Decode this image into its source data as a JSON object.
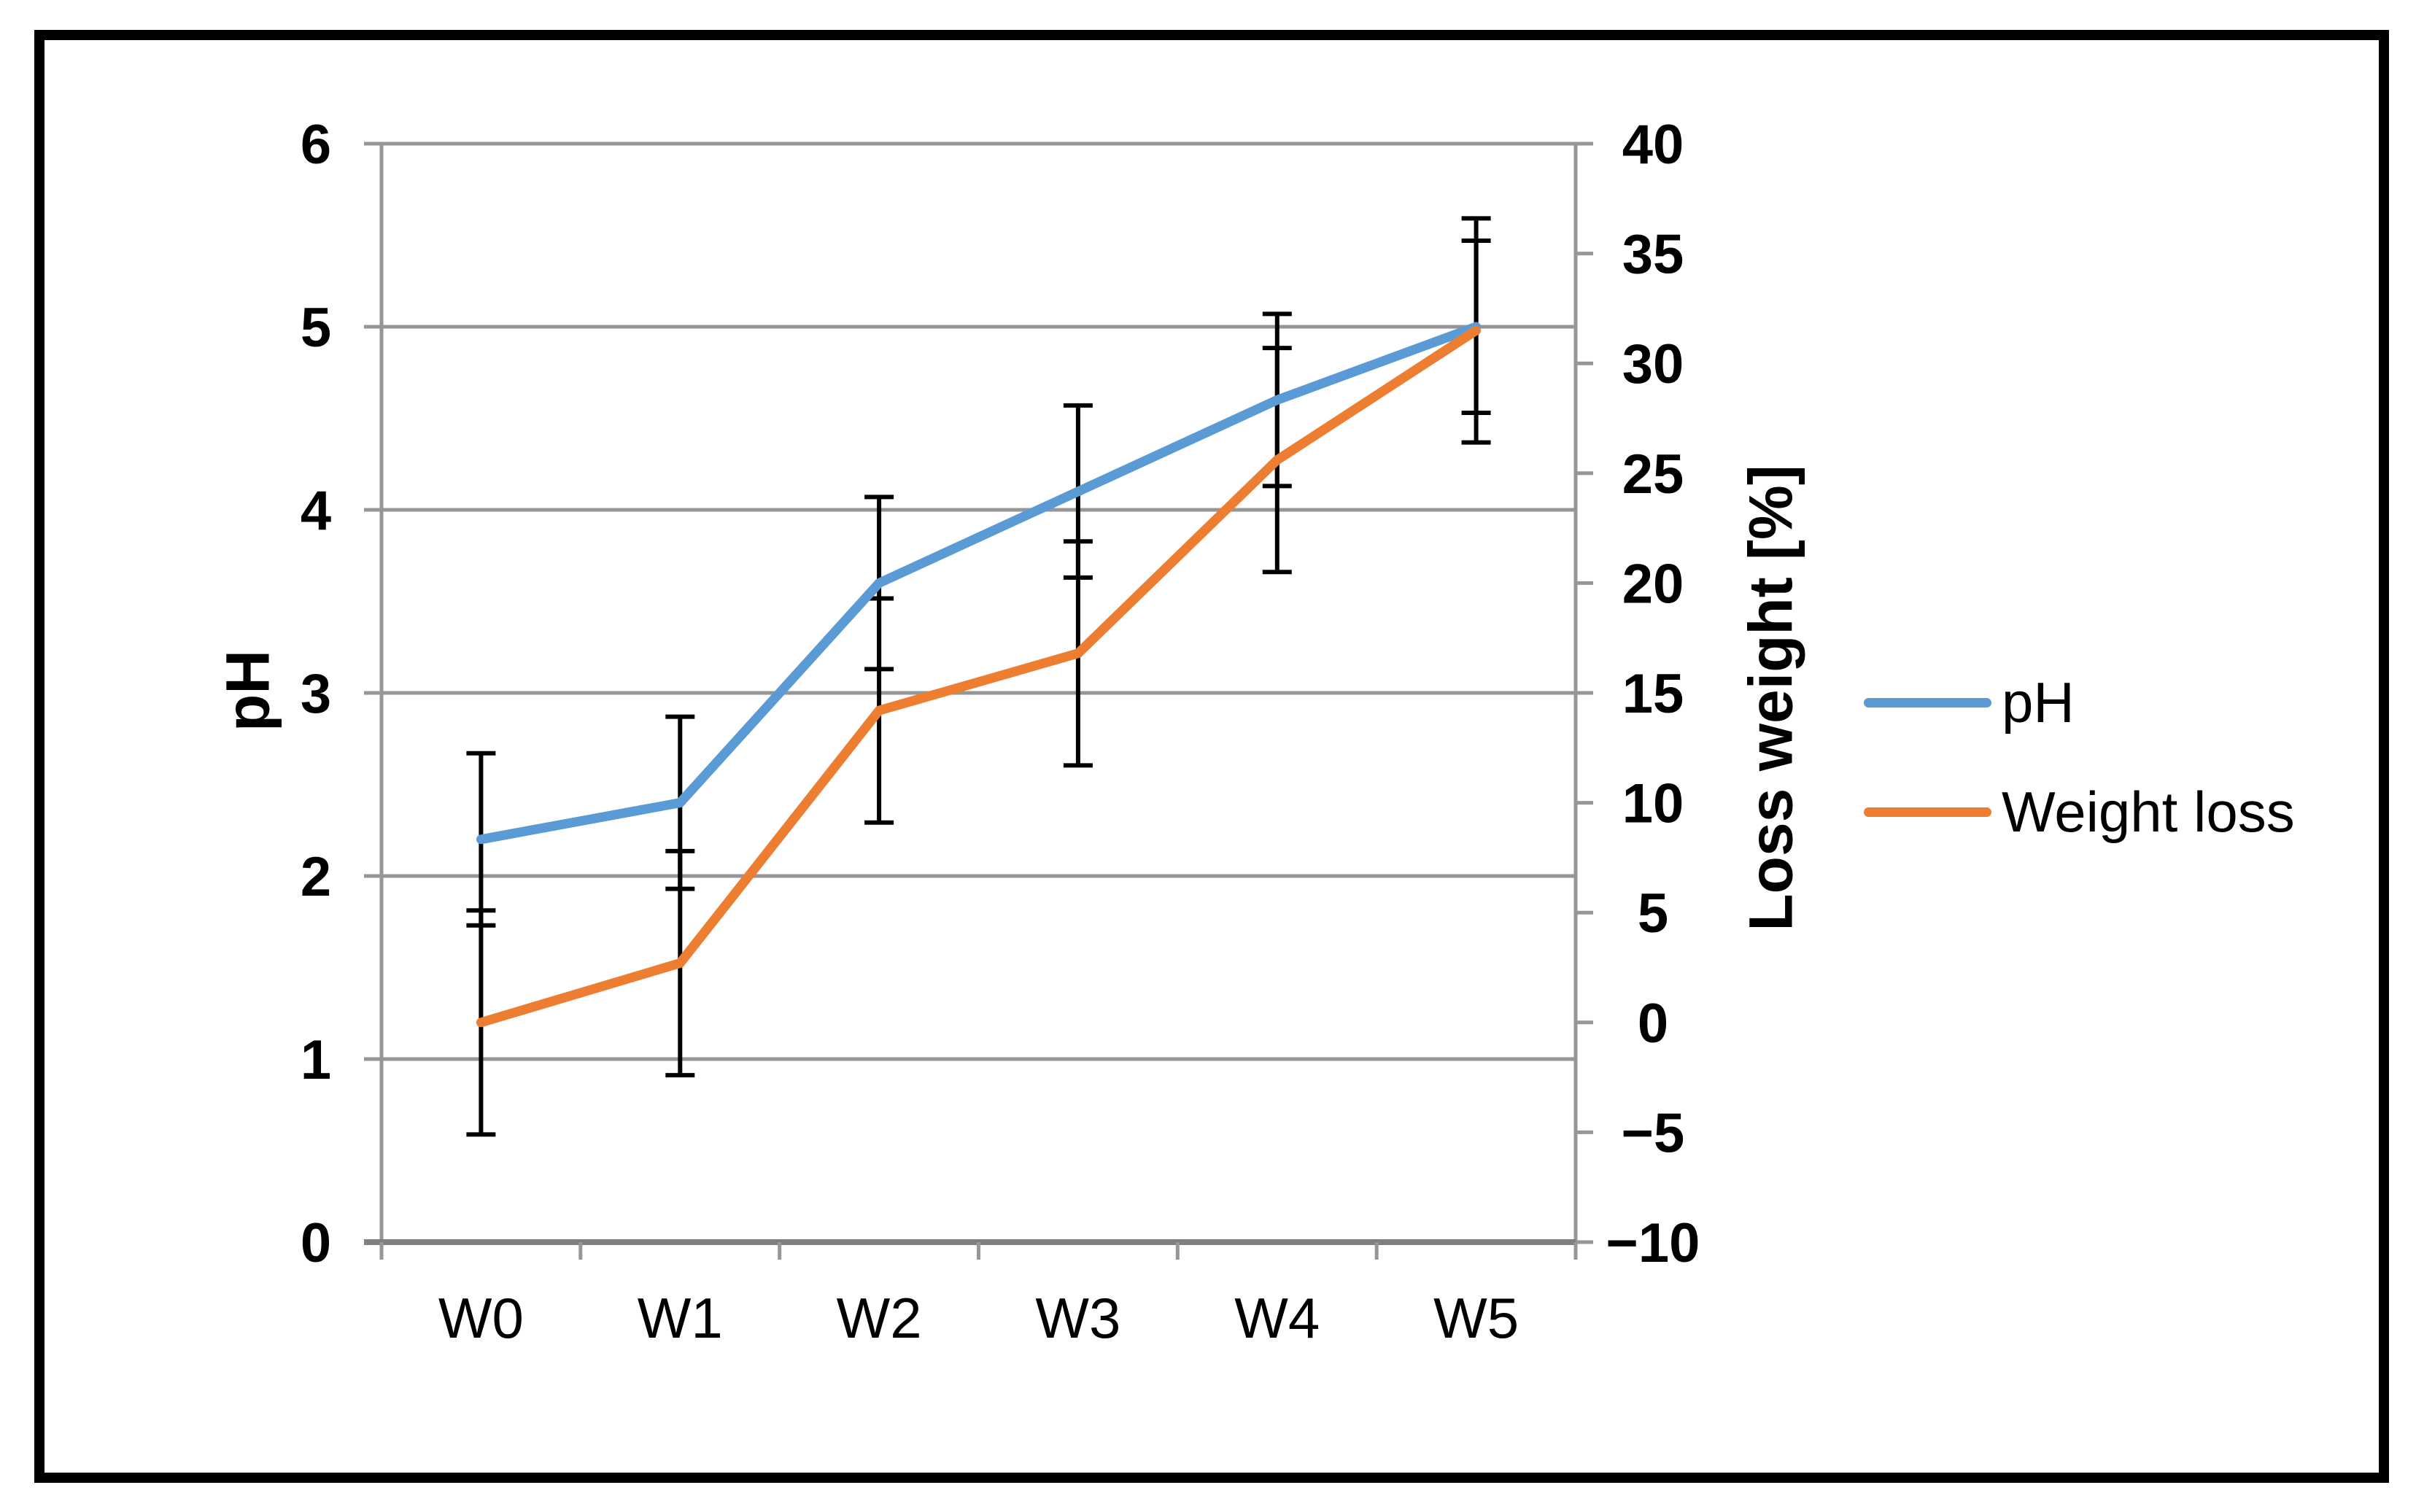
{
  "chart_data": {
    "type": "line",
    "categories": [
      "W0",
      "W1",
      "W2",
      "W3",
      "W4",
      "W5"
    ],
    "series": [
      {
        "name": "pH",
        "axis": "left",
        "color": "#5B9BD5",
        "values": [
          2.2,
          2.4,
          3.6,
          4.1,
          4.6,
          5.0
        ],
        "error": 0.47
      },
      {
        "name": "Weight loss",
        "axis": "right",
        "color": "#ED7D31",
        "values": [
          0,
          2.7,
          14.2,
          16.8,
          25.6,
          31.5
        ],
        "error": 5.1
      }
    ],
    "left_axis": {
      "title": "pH",
      "min": 0,
      "max": 6,
      "tick_step": 1,
      "tick_labels": [
        "0",
        "1",
        "2",
        "3",
        "4",
        "5",
        "6"
      ]
    },
    "right_axis": {
      "title": "Loss weight [%]",
      "min": -10,
      "max": 40,
      "tick_step": 5,
      "tick_labels": [
        "−10",
        "−5",
        "0",
        "5",
        "10",
        "15",
        "20",
        "25",
        "30",
        "35",
        "40"
      ]
    },
    "legend": {
      "position": "right-middle",
      "items": [
        {
          "label": "pH",
          "color": "#5B9BD5"
        },
        {
          "label": "Weight loss",
          "color": "#ED7D31"
        }
      ]
    },
    "grid": {
      "horizontal": true,
      "vertical": false
    },
    "error_bars": {
      "color": "#000000"
    },
    "style": {
      "gridline_color": "#969696",
      "axis_line_color": "#969696",
      "x_axis_line_color": "#7F7F7F",
      "frame_color": "#000000",
      "background": "#FFFFFF",
      "series_line_width": 13
    }
  }
}
